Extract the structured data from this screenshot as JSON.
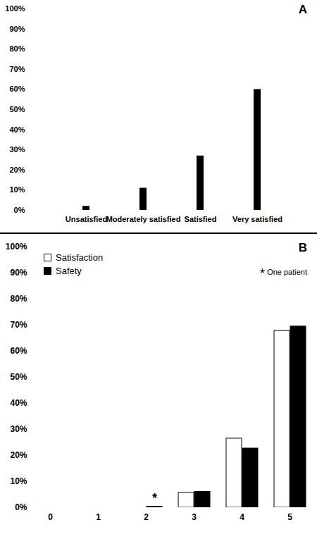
{
  "chart_data": [
    {
      "type": "bar",
      "title": "A",
      "categories": [
        "Unsatisfied",
        "Moderately satisfied",
        "Satisfied",
        "Very satisfied"
      ],
      "values": [
        2,
        11,
        27,
        60
      ],
      "color": "#000000",
      "ylim": [
        0,
        100
      ],
      "yticks": [
        {
          "value": 0,
          "label": "0%"
        },
        {
          "value": 10,
          "label": "10%"
        },
        {
          "value": 20,
          "label": "20%"
        },
        {
          "value": 30,
          "label": "30%"
        },
        {
          "value": 40,
          "label": "40%"
        },
        {
          "value": 50,
          "label": "50%"
        },
        {
          "value": 60,
          "label": "60%"
        },
        {
          "value": 70,
          "label": "70%"
        },
        {
          "value": 80,
          "label": "80%"
        },
        {
          "value": 90,
          "label": "90%"
        },
        {
          "value": 100,
          "label": "100%"
        }
      ]
    },
    {
      "type": "bar",
      "title": "B",
      "categories": [
        0,
        1,
        2,
        3,
        4,
        5
      ],
      "series": [
        {
          "name": "Satisfaction",
          "color": "#ffffff",
          "values": [
            0,
            0,
            0,
            5.7,
            26.5,
            67.8
          ]
        },
        {
          "name": "Safety",
          "color": "#000000",
          "values": [
            0,
            0,
            0.4,
            6.1,
            22.7,
            69.5
          ]
        }
      ],
      "legend": "top-left",
      "annotations": [
        {
          "text": "*",
          "category": 2,
          "series": "Safety",
          "note": "One patient"
        }
      ],
      "ylim": [
        0,
        100
      ],
      "yticks": [
        {
          "value": 0,
          "label": "0%"
        },
        {
          "value": 10,
          "label": "10%"
        },
        {
          "value": 20,
          "label": "20%"
        },
        {
          "value": 30,
          "label": "30%"
        },
        {
          "value": 40,
          "label": "40%"
        },
        {
          "value": 50,
          "label": "50%"
        },
        {
          "value": 60,
          "label": "60%"
        },
        {
          "value": 70,
          "label": "70%"
        },
        {
          "value": 80,
          "label": "80%"
        },
        {
          "value": 90,
          "label": "90%"
        },
        {
          "value": 100,
          "label": "100%"
        }
      ]
    }
  ]
}
